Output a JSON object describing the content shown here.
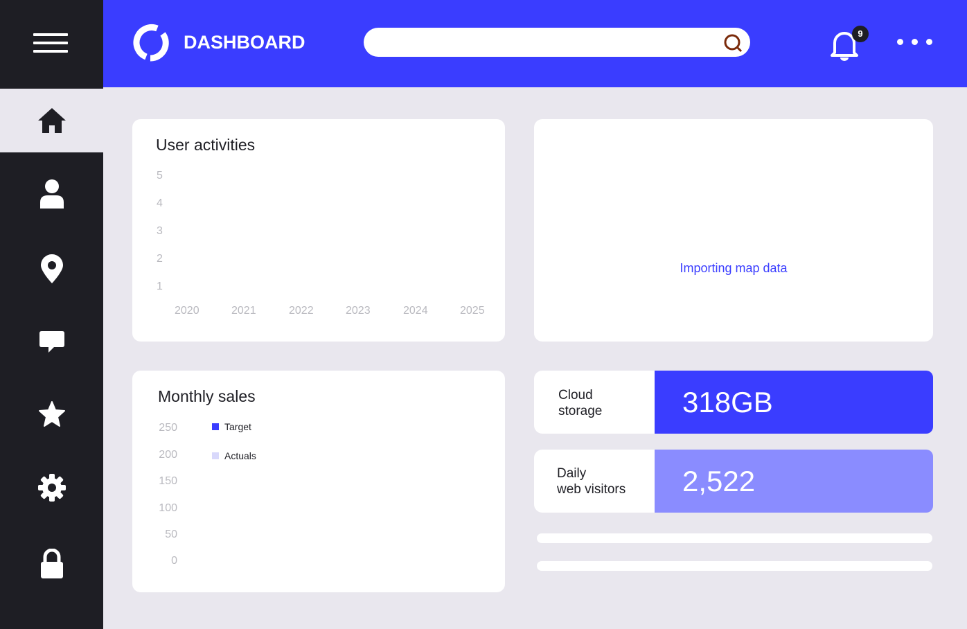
{
  "header": {
    "brand": "DASHBOARD",
    "search_placeholder": "",
    "notifications": "9"
  },
  "sidebar": {
    "items": [
      "home",
      "profile",
      "location",
      "messages",
      "favorites",
      "settings",
      "security"
    ],
    "active": "home"
  },
  "user_activities": {
    "title": "User activities",
    "y_ticks": [
      "5",
      "4",
      "3",
      "2",
      "1"
    ],
    "x_ticks": [
      "2020",
      "2021",
      "2022",
      "2023",
      "2024",
      "2025"
    ]
  },
  "map": {
    "status": "Importing map data"
  },
  "monthly_sales": {
    "title": "Monthly sales",
    "y_ticks": [
      "250",
      "200",
      "150",
      "100",
      "50",
      "0"
    ],
    "legend": [
      {
        "label": "Target",
        "color": "#3a3dff"
      },
      {
        "label": "Actuals",
        "color": "#d8d8fb"
      }
    ]
  },
  "stats": {
    "cloud_label_1": "Cloud",
    "cloud_label_2": "storage",
    "cloud_value": "318GB",
    "visitors_label_1": "Daily",
    "visitors_label_2": "web visitors",
    "visitors_value": "2,522"
  },
  "colors": {
    "accent": "#3a3dff",
    "sidebar": "#1e1e24",
    "secondary": "#8a8cff"
  }
}
